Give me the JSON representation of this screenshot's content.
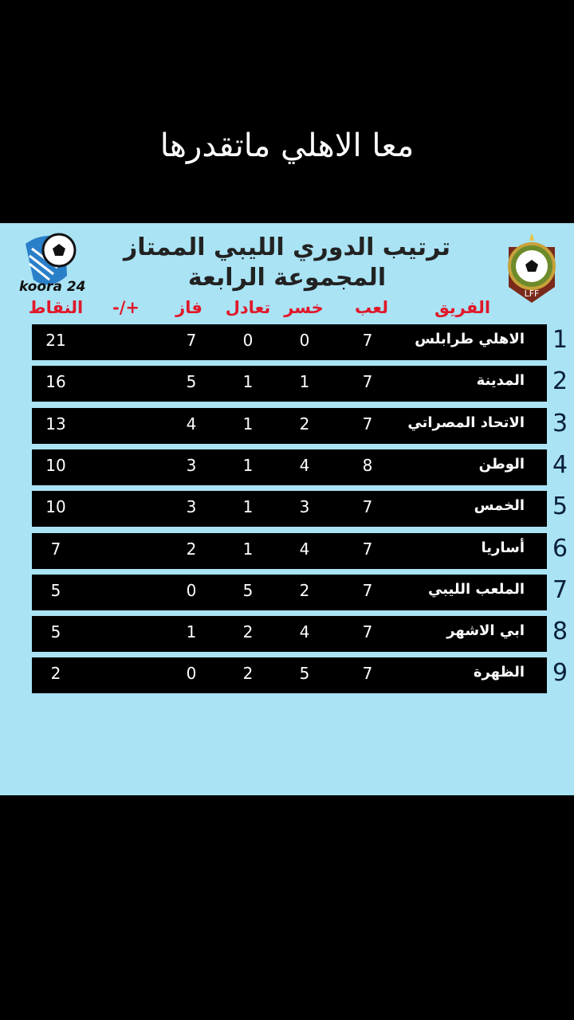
{
  "caption": "معا الاهلي ماتقدرها",
  "title_line1": "ترتيب الدوري الليبي الممتاز",
  "title_line2": "المجموعة الرابعة",
  "brand": "koora 24",
  "lff_logo": "LFF",
  "headers": {
    "team": "الفريق",
    "played": "لعب",
    "lost": "خسر",
    "drawn": "تعادل",
    "won": "فاز",
    "diff": "-/+",
    "points": "النقاط"
  },
  "rows": [
    {
      "rank": "1",
      "team": "الاهلي طرابلس",
      "played": "7",
      "lost": "0",
      "drawn": "0",
      "won": "7",
      "points": "21"
    },
    {
      "rank": "2",
      "team": "المدينة",
      "played": "7",
      "lost": "1",
      "drawn": "1",
      "won": "5",
      "points": "16"
    },
    {
      "rank": "3",
      "team": "الاتحاد المصراتي",
      "played": "7",
      "lost": "2",
      "drawn": "1",
      "won": "4",
      "points": "13"
    },
    {
      "rank": "4",
      "team": "الوطن",
      "played": "8",
      "lost": "4",
      "drawn": "1",
      "won": "3",
      "points": "10"
    },
    {
      "rank": "5",
      "team": "الخمس",
      "played": "7",
      "lost": "3",
      "drawn": "1",
      "won": "3",
      "points": "10"
    },
    {
      "rank": "6",
      "team": "أساريا",
      "played": "7",
      "lost": "4",
      "drawn": "1",
      "won": "2",
      "points": "7"
    },
    {
      "rank": "7",
      "team": "الملعب الليبي",
      "played": "7",
      "lost": "2",
      "drawn": "5",
      "won": "0",
      "points": "5"
    },
    {
      "rank": "8",
      "team": "ابي الاشهر",
      "played": "7",
      "lost": "4",
      "drawn": "2",
      "won": "1",
      "points": "5"
    },
    {
      "rank": "9",
      "team": "الظهرة",
      "played": "7",
      "lost": "5",
      "drawn": "2",
      "won": "0",
      "points": "2"
    }
  ],
  "colors": {
    "panel": "#a9e3f4",
    "header": "#e0182a",
    "row": "#000000"
  }
}
